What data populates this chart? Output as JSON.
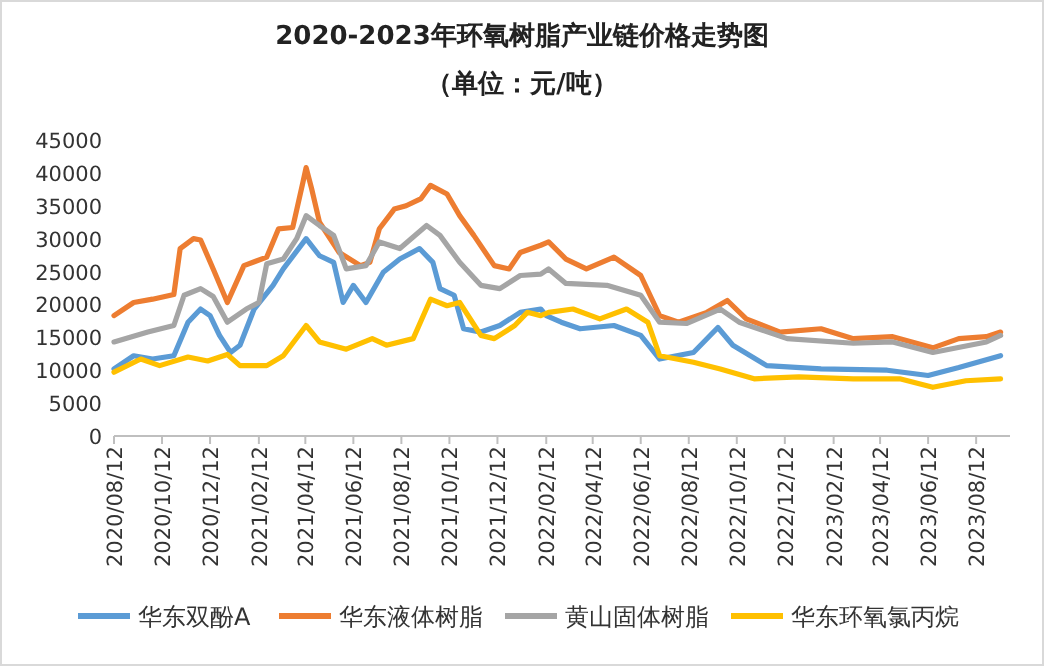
{
  "chart_data": {
    "type": "line",
    "title": "2020-2023年环氧树脂产业链价格走势图",
    "subtitle": "（单位：元/吨）",
    "xlim": [
      "2020-08-12",
      "2023-09-24"
    ],
    "ylim": [
      0,
      45000
    ],
    "xticks": [
      {
        "value": "2020-08-12",
        "label": "2020/08/12"
      },
      {
        "value": "2020-10-12",
        "label": "2020/10/12"
      },
      {
        "value": "2020-12-12",
        "label": "2020/12/12"
      },
      {
        "value": "2021-02-12",
        "label": "2021/02/12"
      },
      {
        "value": "2021-04-12",
        "label": "2021/04/12"
      },
      {
        "value": "2021-06-12",
        "label": "2021/06/12"
      },
      {
        "value": "2021-08-12",
        "label": "2021/08/12"
      },
      {
        "value": "2021-10-12",
        "label": "2021/10/12"
      },
      {
        "value": "2021-12-12",
        "label": "2021/12/12"
      },
      {
        "value": "2022-02-12",
        "label": "2022/02/12"
      },
      {
        "value": "2022-04-12",
        "label": "2022/04/12"
      },
      {
        "value": "2022-06-12",
        "label": "2022/06/12"
      },
      {
        "value": "2022-08-12",
        "label": "2022/08/12"
      },
      {
        "value": "2022-10-12",
        "label": "2022/10/12"
      },
      {
        "value": "2022-12-12",
        "label": "2022/12/12"
      },
      {
        "value": "2023-02-12",
        "label": "2023/02/12"
      },
      {
        "value": "2023-04-12",
        "label": "2023/04/12"
      },
      {
        "value": "2023-06-12",
        "label": "2023/06/12"
      },
      {
        "value": "2023-08-12",
        "label": "2023/08/12"
      }
    ],
    "yticks": [
      0,
      5000,
      10000,
      15000,
      20000,
      25000,
      30000,
      35000,
      40000,
      45000
    ],
    "legend": "bottom",
    "series": [
      {
        "name": "华东双酚A",
        "color": "#5b9bd5",
        "x": [
          "2020-08-12",
          "2020-09-06",
          "2020-09-30",
          "2020-10-27",
          "2020-11-14",
          "2020-11-30",
          "2020-12-12",
          "2020-12-24",
          "2021-01-07",
          "2021-01-19",
          "2021-02-06",
          "2021-03-02",
          "2021-03-15",
          "2021-04-13",
          "2021-04-30",
          "2021-05-18",
          "2021-05-30",
          "2021-06-12",
          "2021-06-28",
          "2021-07-20",
          "2021-08-10",
          "2021-09-04",
          "2021-09-21",
          "2021-09-30",
          "2021-10-18",
          "2021-10-30",
          "2021-11-21",
          "2021-12-15",
          "2022-01-10",
          "2022-02-05",
          "2022-02-12",
          "2022-03-03",
          "2022-03-27",
          "2022-05-09",
          "2022-06-12",
          "2022-07-06",
          "2022-08-18",
          "2022-09-18",
          "2022-10-07",
          "2022-11-19",
          "2023-01-27",
          "2023-04-21",
          "2023-06-12",
          "2023-07-21",
          "2023-09-12"
        ],
        "values": [
          10200,
          12200,
          11700,
          12200,
          17300,
          19300,
          18300,
          15300,
          12700,
          13800,
          19300,
          22900,
          25400,
          30000,
          27400,
          26400,
          20300,
          22900,
          20300,
          24900,
          26900,
          28500,
          26400,
          22400,
          21400,
          16300,
          15800,
          16800,
          18800,
          19300,
          18300,
          17300,
          16300,
          16800,
          15300,
          11700,
          12700,
          16500,
          13800,
          10700,
          10200,
          10000,
          9200,
          10400,
          12200
        ]
      },
      {
        "name": "华东液体树脂",
        "color": "#ed7d31",
        "x": [
          "2020-08-12",
          "2020-09-06",
          "2020-09-30",
          "2020-10-27",
          "2020-11-04",
          "2020-11-21",
          "2020-11-30",
          "2020-12-16",
          "2021-01-03",
          "2021-01-24",
          "2021-02-22",
          "2021-03-09",
          "2021-03-27",
          "2021-04-09",
          "2021-04-13",
          "2021-04-20",
          "2021-04-30",
          "2021-05-25",
          "2021-06-21",
          "2021-07-03",
          "2021-07-15",
          "2021-08-03",
          "2021-08-18",
          "2021-09-06",
          "2021-09-18",
          "2021-10-09",
          "2021-10-25",
          "2021-11-12",
          "2021-12-08",
          "2021-12-27",
          "2022-01-10",
          "2022-02-05",
          "2022-02-15",
          "2022-03-09",
          "2022-04-04",
          "2022-05-09",
          "2022-06-12",
          "2022-07-06",
          "2022-07-30",
          "2022-09-04",
          "2022-09-30",
          "2022-10-24",
          "2022-12-06",
          "2023-01-27",
          "2023-03-09",
          "2023-04-28",
          "2023-06-18",
          "2023-07-21",
          "2023-08-25",
          "2023-09-12"
        ],
        "values": [
          18300,
          20300,
          20800,
          21500,
          28500,
          30000,
          29800,
          25400,
          20300,
          25900,
          27200,
          31500,
          31700,
          38600,
          40800,
          37600,
          32500,
          27900,
          25900,
          26400,
          31500,
          34500,
          35000,
          36100,
          38100,
          36800,
          33500,
          30500,
          25900,
          25400,
          27900,
          29000,
          29500,
          26900,
          25400,
          27200,
          24400,
          18300,
          17300,
          18800,
          20600,
          17800,
          15800,
          16300,
          14800,
          15100,
          13400,
          14800,
          15100,
          15800
        ]
      },
      {
        "name": "黄山固体树脂",
        "color": "#a5a5a5",
        "x": [
          "2020-08-12",
          "2020-09-24",
          "2020-10-27",
          "2020-11-09",
          "2020-11-30",
          "2020-12-16",
          "2021-01-03",
          "2021-01-27",
          "2021-02-12",
          "2021-02-22",
          "2021-03-15",
          "2021-04-01",
          "2021-04-13",
          "2021-04-30",
          "2021-05-18",
          "2021-06-03",
          "2021-06-28",
          "2021-07-15",
          "2021-08-10",
          "2021-09-13",
          "2021-09-30",
          "2021-10-25",
          "2021-11-21",
          "2021-12-15",
          "2022-01-10",
          "2022-02-05",
          "2022-02-15",
          "2022-03-09",
          "2022-04-30",
          "2022-06-12",
          "2022-07-06",
          "2022-08-09",
          "2022-09-21",
          "2022-10-15",
          "2022-12-15",
          "2023-03-09",
          "2023-04-28",
          "2023-06-18",
          "2023-08-25",
          "2023-09-12"
        ],
        "values": [
          14300,
          15800,
          16800,
          21400,
          22400,
          21200,
          17300,
          19300,
          20300,
          26200,
          26900,
          30000,
          33500,
          32000,
          30500,
          25400,
          25900,
          29500,
          28500,
          32000,
          30500,
          26400,
          22900,
          22400,
          24400,
          24600,
          25400,
          23200,
          22900,
          21400,
          17300,
          17100,
          19300,
          17300,
          14800,
          14100,
          14300,
          12700,
          14300,
          15300
        ]
      },
      {
        "name": "华东环氧氯丙烷",
        "color": "#ffc000",
        "x": [
          "2020-08-12",
          "2020-09-15",
          "2020-10-09",
          "2020-11-14",
          "2020-12-09",
          "2021-01-03",
          "2021-01-19",
          "2021-02-22",
          "2021-03-15",
          "2021-04-13",
          "2021-04-30",
          "2021-06-03",
          "2021-07-06",
          "2021-07-24",
          "2021-08-27",
          "2021-09-18",
          "2021-10-09",
          "2021-10-25",
          "2021-11-21",
          "2021-12-08",
          "2022-01-03",
          "2022-01-19",
          "2022-02-05",
          "2022-02-15",
          "2022-03-18",
          "2022-04-21",
          "2022-05-25",
          "2022-06-21",
          "2022-07-06",
          "2022-08-18",
          "2022-09-21",
          "2022-11-03",
          "2022-12-30",
          "2023-03-09",
          "2023-05-07",
          "2023-06-18",
          "2023-07-30",
          "2023-09-12"
        ],
        "values": [
          9700,
          11700,
          10700,
          12000,
          11400,
          12400,
          10700,
          10700,
          12200,
          16800,
          14300,
          13200,
          14800,
          13800,
          14800,
          20800,
          19800,
          20300,
          15300,
          14800,
          16800,
          18800,
          18300,
          18800,
          19300,
          17800,
          19300,
          17300,
          12200,
          11200,
          10200,
          8700,
          9000,
          8700,
          8700,
          7400,
          8400,
          8700
        ]
      }
    ]
  }
}
